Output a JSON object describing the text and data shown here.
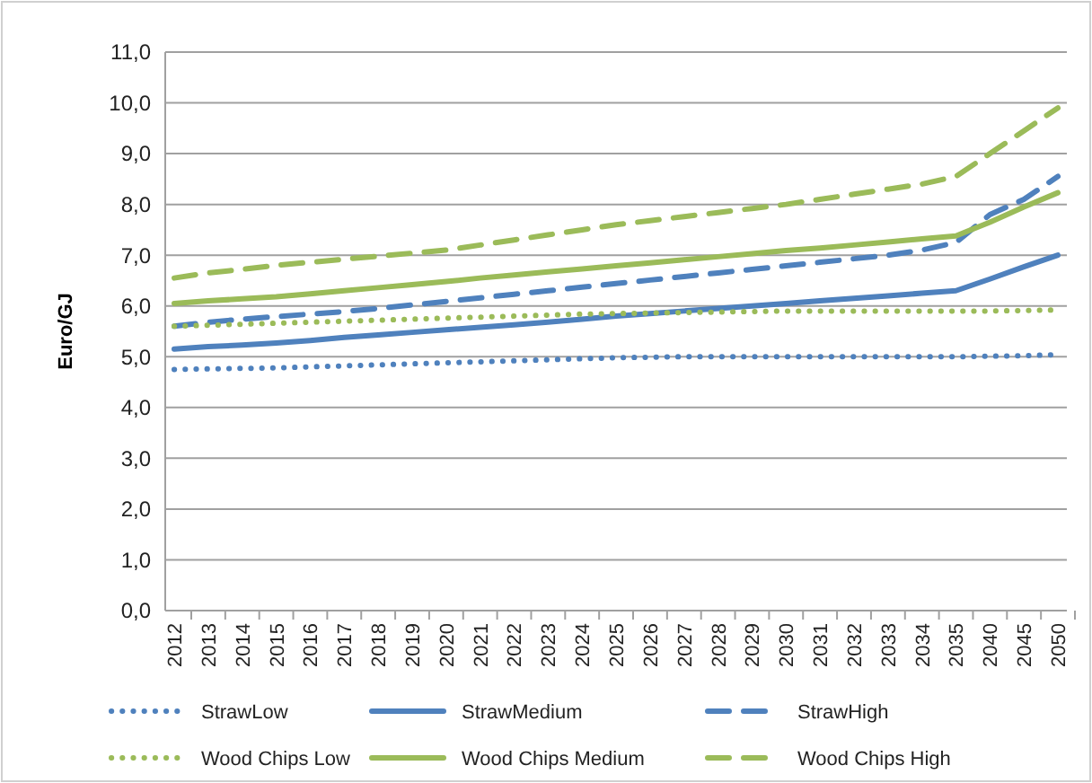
{
  "chart_data": {
    "type": "line",
    "ylabel": "Euro/GJ",
    "categories": [
      "2012",
      "2013",
      "2014",
      "2015",
      "2016",
      "2017",
      "2018",
      "2019",
      "2020",
      "2021",
      "2022",
      "2023",
      "2024",
      "2025",
      "2026",
      "2027",
      "2028",
      "2029",
      "2030",
      "2031",
      "2032",
      "2033",
      "2034",
      "2035",
      "2040",
      "2045",
      "2050"
    ],
    "ylim": [
      0,
      11
    ],
    "yticks": [
      {
        "value": 0,
        "label": "0,0"
      },
      {
        "value": 1,
        "label": "1,0"
      },
      {
        "value": 2,
        "label": "2,0"
      },
      {
        "value": 3,
        "label": "3,0"
      },
      {
        "value": 4,
        "label": "4,0"
      },
      {
        "value": 5,
        "label": "5,0"
      },
      {
        "value": 6,
        "label": "6,0"
      },
      {
        "value": 7,
        "label": "7,0"
      },
      {
        "value": 8,
        "label": "8,0"
      },
      {
        "value": 9,
        "label": "9,0"
      },
      {
        "value": 10,
        "label": "10,0"
      },
      {
        "value": 11,
        "label": "11,0"
      }
    ],
    "grid": "y",
    "legend": "bottom",
    "series": [
      {
        "name": "StrawLow",
        "color": "#4f81bd",
        "line_style": "dotted",
        "values": [
          4.75,
          4.76,
          4.77,
          4.78,
          4.8,
          4.82,
          4.84,
          4.86,
          4.88,
          4.9,
          4.92,
          4.94,
          4.96,
          4.98,
          4.99,
          5.0,
          5.0,
          5.0,
          5.0,
          5.0,
          5.0,
          5.0,
          5.0,
          5.0,
          5.01,
          5.02,
          5.04
        ]
      },
      {
        "name": "StrawMedium",
        "color": "#4f81bd",
        "line_style": "solid",
        "values": [
          5.15,
          5.2,
          5.23,
          5.27,
          5.32,
          5.38,
          5.43,
          5.48,
          5.53,
          5.58,
          5.63,
          5.68,
          5.74,
          5.8,
          5.85,
          5.9,
          5.95,
          6.0,
          6.05,
          6.1,
          6.15,
          6.2,
          6.25,
          6.3,
          6.53,
          6.77,
          7.0
        ]
      },
      {
        "name": "StrawHigh",
        "color": "#4f81bd",
        "line_style": "dashed",
        "values": [
          5.6,
          5.68,
          5.74,
          5.79,
          5.84,
          5.89,
          5.95,
          6.02,
          6.09,
          6.16,
          6.23,
          6.3,
          6.37,
          6.44,
          6.51,
          6.58,
          6.65,
          6.72,
          6.79,
          6.86,
          6.93,
          7.0,
          7.1,
          7.25,
          7.8,
          8.1,
          8.55
        ]
      },
      {
        "name": "Wood Chips Low",
        "color": "#9bbb59",
        "line_style": "dotted",
        "values": [
          5.6,
          5.62,
          5.64,
          5.66,
          5.68,
          5.7,
          5.72,
          5.74,
          5.76,
          5.78,
          5.8,
          5.82,
          5.84,
          5.85,
          5.86,
          5.87,
          5.88,
          5.89,
          5.9,
          5.9,
          5.9,
          5.9,
          5.9,
          5.9,
          5.9,
          5.91,
          5.92
        ]
      },
      {
        "name": "Wood Chips Medium",
        "color": "#9bbb59",
        "line_style": "solid",
        "values": [
          6.05,
          6.1,
          6.14,
          6.18,
          6.24,
          6.3,
          6.36,
          6.42,
          6.48,
          6.55,
          6.61,
          6.67,
          6.73,
          6.79,
          6.85,
          6.91,
          6.97,
          7.03,
          7.09,
          7.14,
          7.2,
          7.26,
          7.32,
          7.38,
          7.65,
          7.95,
          8.23
        ]
      },
      {
        "name": "Wood Chips High",
        "color": "#9bbb59",
        "line_style": "dashed",
        "values": [
          6.55,
          6.65,
          6.72,
          6.8,
          6.86,
          6.92,
          6.98,
          7.04,
          7.1,
          7.2,
          7.3,
          7.4,
          7.5,
          7.6,
          7.68,
          7.76,
          7.84,
          7.92,
          8.0,
          8.1,
          8.2,
          8.3,
          8.4,
          8.55,
          9.0,
          9.45,
          9.9
        ]
      }
    ]
  }
}
